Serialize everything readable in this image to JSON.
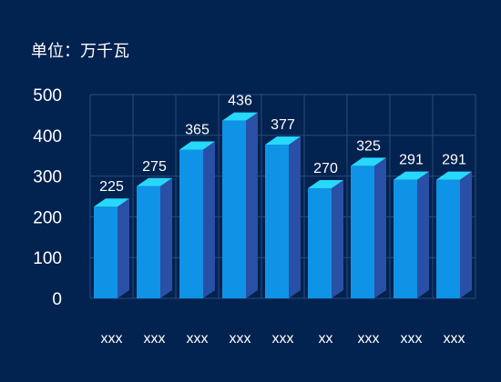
{
  "unit_label": "单位：万千瓦",
  "colors": {
    "background": "#02224f",
    "bar_front": "#0f93e6",
    "bar_side": "#2a4fa6",
    "bar_top": "#27d8fb",
    "grid": "#2a4a7e",
    "text": "#ffffff"
  },
  "chart_data": {
    "type": "bar",
    "title": "",
    "xlabel": "",
    "ylabel": "",
    "categories": [
      "xxx",
      "xxx",
      "xxx",
      "xxx",
      "xxx",
      "xx",
      "xxx",
      "xxx",
      "xxx"
    ],
    "values": [
      225,
      275,
      365,
      436,
      377,
      270,
      325,
      291,
      291
    ],
    "ylim": [
      0,
      500
    ],
    "yticks": [
      "0",
      "100",
      "200",
      "300",
      "400",
      "500"
    ],
    "grid": true,
    "style": "3d-bar",
    "data_labels": true
  }
}
